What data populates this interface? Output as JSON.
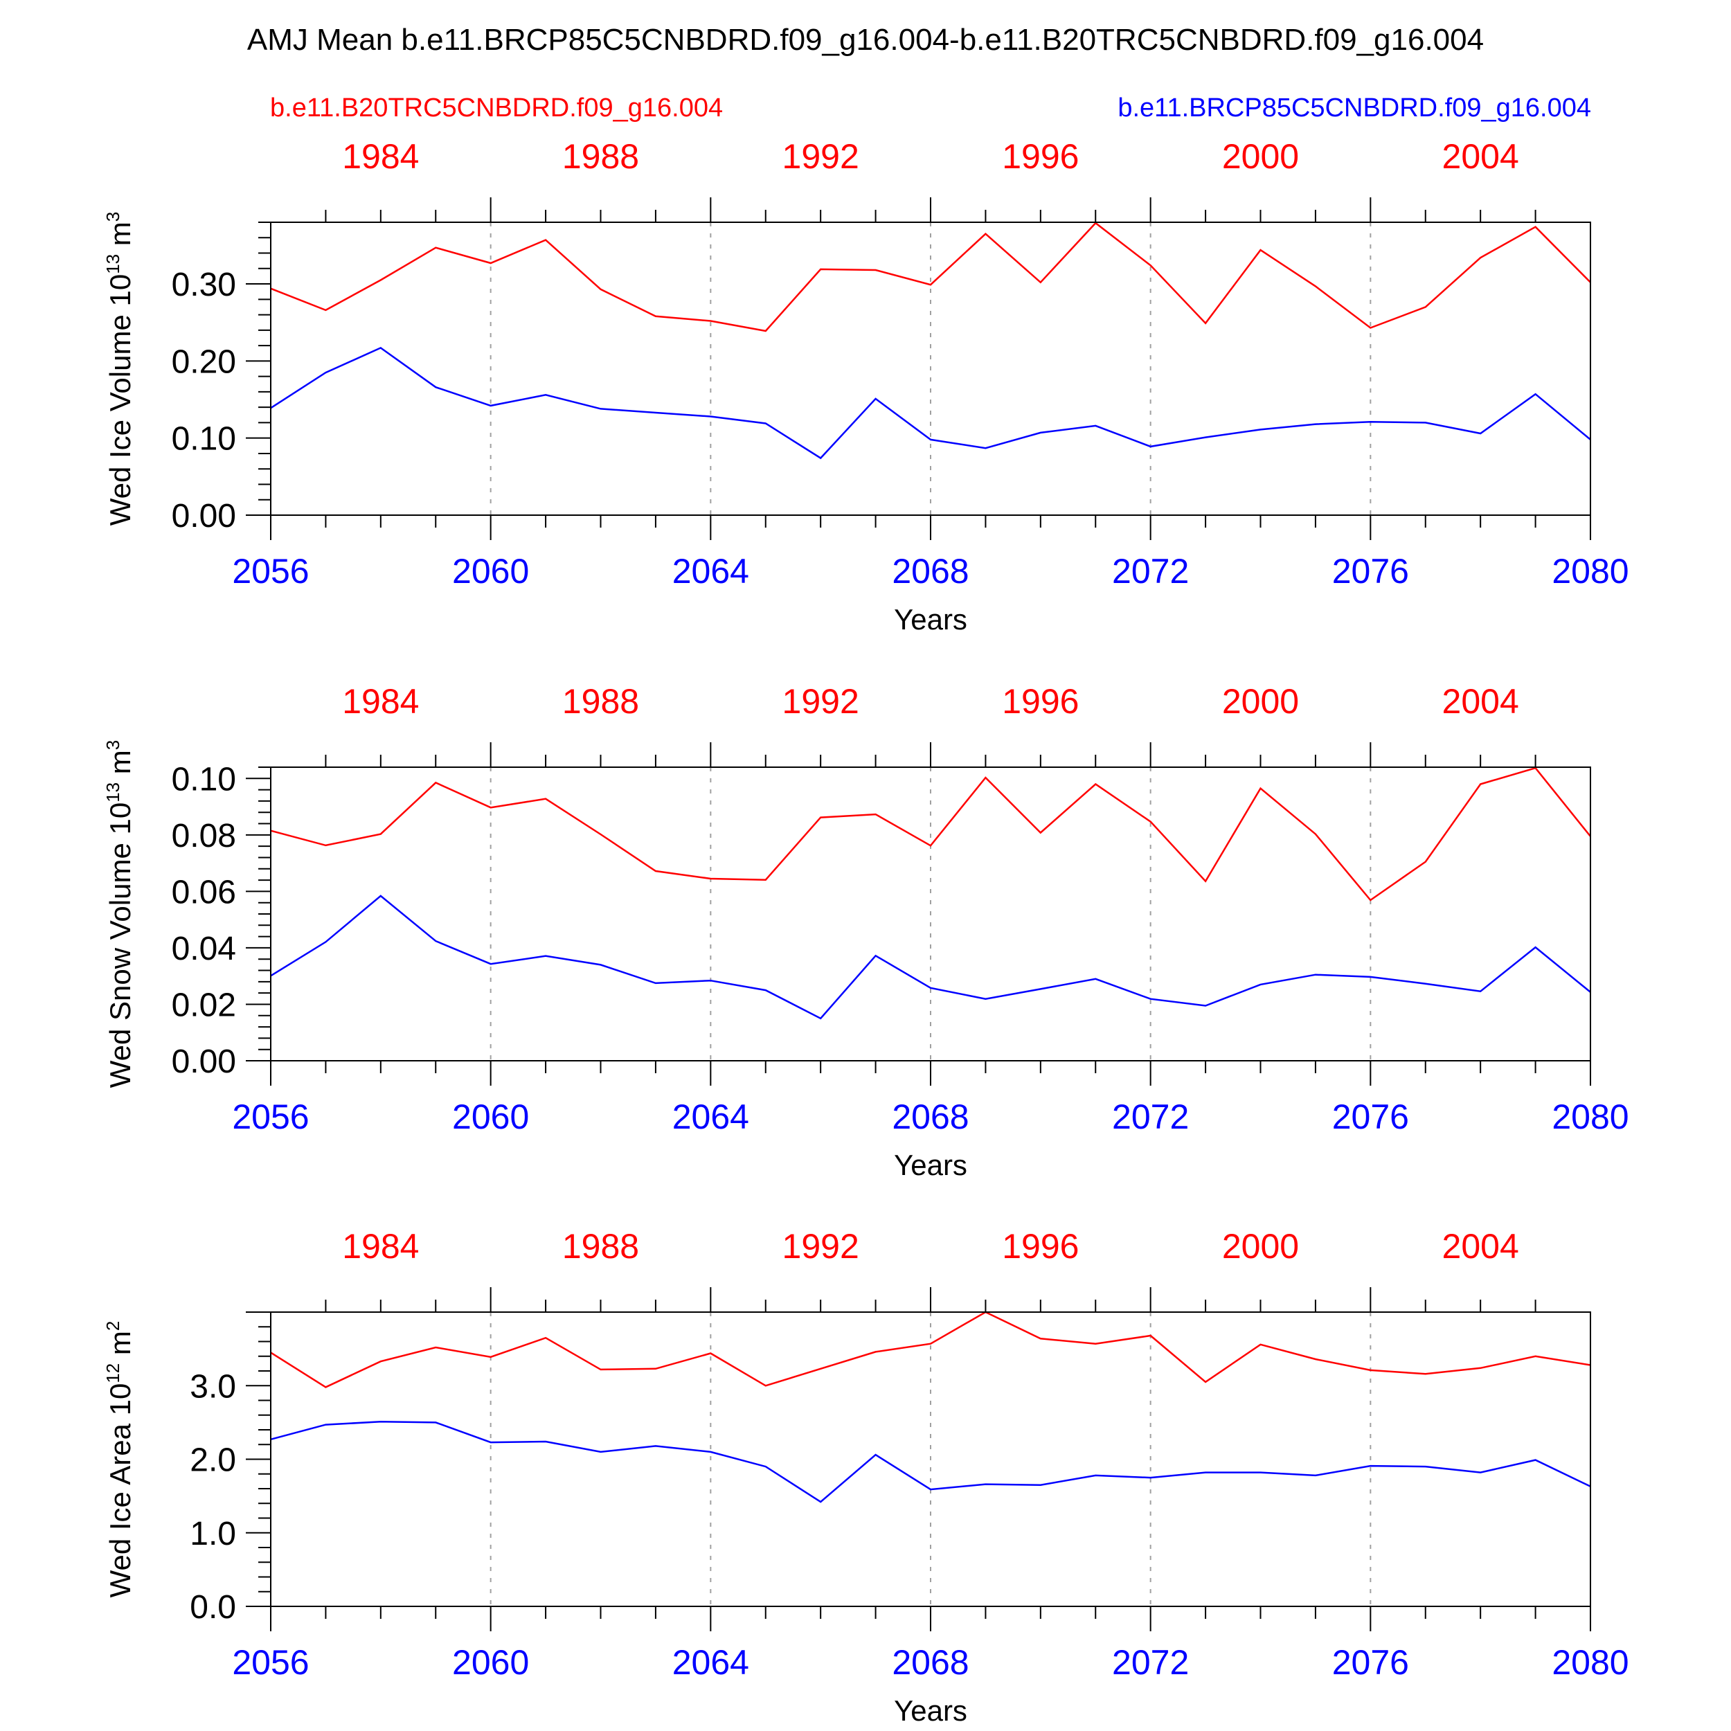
{
  "title": "AMJ Mean b.e11.BRCP85C5CNBDRD.f09_g16.004-b.e11.B20TRC5CNBDRD.f09_g16.004",
  "legend": {
    "left_label": "b.e11.B20TRC5CNBDRD.f09_g16.004",
    "right_label": "b.e11.BRCP85C5CNBDRD.f09_g16.004"
  },
  "colors": {
    "red": "#ff0000",
    "blue": "#0000ff",
    "axis": "#000000",
    "grid": "#a0a0a0"
  },
  "chart_data": [
    {
      "type": "line",
      "ylabel": {
        "text": "Wed Ice Volume 10",
        "exponent": "13",
        "unit": " m",
        "unit_exp": "3"
      },
      "xlabel": "Years",
      "xlim": [
        2056,
        2080
      ],
      "ylim": [
        0,
        0.38
      ],
      "yticks": [
        0,
        0.1,
        0.2,
        0.3
      ],
      "ytick_labels": [
        "0.00",
        "0.10",
        "0.20",
        "0.30"
      ],
      "bottom_ticks": [
        "2056",
        "2060",
        "2064",
        "2068",
        "2072",
        "2076",
        "2080"
      ],
      "top_ticks": [
        "1984",
        "1988",
        "1992",
        "1996",
        "2000",
        "2004"
      ],
      "grid_x": [
        2060,
        2064,
        2068,
        2072,
        2076
      ],
      "x": [
        2056,
        2057,
        2058,
        2059,
        2060,
        2061,
        2062,
        2063,
        2064,
        2065,
        2066,
        2067,
        2068,
        2069,
        2070,
        2071,
        2072,
        2073,
        2074,
        2075,
        2076,
        2077,
        2078,
        2079,
        2080
      ],
      "series": [
        {
          "color": "red",
          "values": [
            0.294,
            0.266,
            0.305,
            0.347,
            0.327,
            0.357,
            0.293,
            0.258,
            0.252,
            0.239,
            0.319,
            0.318,
            0.299,
            0.365,
            0.302,
            0.379,
            0.324,
            0.249,
            0.344,
            0.297,
            0.243,
            0.27,
            0.334,
            0.374,
            0.302
          ]
        },
        {
          "color": "blue",
          "values": [
            0.139,
            0.185,
            0.217,
            0.166,
            0.142,
            0.156,
            0.138,
            0.133,
            0.128,
            0.119,
            0.074,
            0.151,
            0.098,
            0.087,
            0.107,
            0.116,
            0.089,
            0.101,
            0.111,
            0.118,
            0.121,
            0.12,
            0.106,
            0.157,
            0.098
          ]
        }
      ]
    },
    {
      "type": "line",
      "ylabel": {
        "text": "Wed Snow Volume 10",
        "exponent": "13",
        "unit": " m",
        "unit_exp": "3"
      },
      "xlabel": "Years",
      "xlim": [
        2056,
        2080
      ],
      "ylim": [
        0,
        0.104
      ],
      "yticks": [
        0,
        0.02,
        0.04,
        0.06,
        0.08,
        0.1
      ],
      "ytick_labels": [
        "0.00",
        "0.02",
        "0.04",
        "0.06",
        "0.08",
        "0.10"
      ],
      "bottom_ticks": [
        "2056",
        "2060",
        "2064",
        "2068",
        "2072",
        "2076",
        "2080"
      ],
      "top_ticks": [
        "1984",
        "1988",
        "1992",
        "1996",
        "2000",
        "2004"
      ],
      "grid_x": [
        2060,
        2064,
        2068,
        2072,
        2076
      ],
      "x": [
        2056,
        2057,
        2058,
        2059,
        2060,
        2061,
        2062,
        2063,
        2064,
        2065,
        2066,
        2067,
        2068,
        2069,
        2070,
        2071,
        2072,
        2073,
        2074,
        2075,
        2076,
        2077,
        2078,
        2079,
        2080
      ],
      "series": [
        {
          "color": "red",
          "values": [
            0.0815,
            0.0763,
            0.0803,
            0.0985,
            0.0897,
            0.0928,
            0.0802,
            0.0672,
            0.0645,
            0.0641,
            0.0862,
            0.0873,
            0.0762,
            0.1003,
            0.0808,
            0.098,
            0.0847,
            0.0636,
            0.0965,
            0.0803,
            0.0569,
            0.0705,
            0.098,
            0.1037,
            0.0795
          ]
        },
        {
          "color": "blue",
          "values": [
            0.0301,
            0.0421,
            0.0584,
            0.0424,
            0.0343,
            0.0371,
            0.034,
            0.0275,
            0.0284,
            0.025,
            0.015,
            0.0372,
            0.0258,
            0.0219,
            0.0254,
            0.029,
            0.0219,
            0.0195,
            0.027,
            0.0305,
            0.0297,
            0.0273,
            0.0246,
            0.0402,
            0.0243
          ]
        }
      ]
    },
    {
      "type": "line",
      "ylabel": {
        "text": "Wed Ice Area 10",
        "exponent": "12",
        "unit": " m",
        "unit_exp": "2"
      },
      "xlabel": "Years",
      "xlim": [
        2056,
        2080
      ],
      "ylim": [
        0,
        4.0
      ],
      "yticks": [
        0,
        1,
        2,
        3
      ],
      "ytick_labels": [
        "0.0",
        "1.0",
        "2.0",
        "3.0"
      ],
      "bottom_ticks": [
        "2056",
        "2060",
        "2064",
        "2068",
        "2072",
        "2076",
        "2080"
      ],
      "top_ticks": [
        "1984",
        "1988",
        "1992",
        "1996",
        "2000",
        "2004"
      ],
      "grid_x": [
        2060,
        2064,
        2068,
        2072,
        2076
      ],
      "x": [
        2056,
        2057,
        2058,
        2059,
        2060,
        2061,
        2062,
        2063,
        2064,
        2065,
        2066,
        2067,
        2068,
        2069,
        2070,
        2071,
        2072,
        2073,
        2074,
        2075,
        2076,
        2077,
        2078,
        2079,
        2080
      ],
      "series": [
        {
          "color": "red",
          "values": [
            3.45,
            2.98,
            3.33,
            3.52,
            3.39,
            3.65,
            3.22,
            3.23,
            3.44,
            3.0,
            3.23,
            3.46,
            3.57,
            4.0,
            3.64,
            3.57,
            3.68,
            3.05,
            3.56,
            3.36,
            3.21,
            3.16,
            3.24,
            3.4,
            3.28
          ]
        },
        {
          "color": "blue",
          "values": [
            2.27,
            2.47,
            2.51,
            2.5,
            2.23,
            2.24,
            2.1,
            2.18,
            2.1,
            1.9,
            1.42,
            2.06,
            1.59,
            1.66,
            1.65,
            1.78,
            1.75,
            1.82,
            1.82,
            1.78,
            1.91,
            1.9,
            1.82,
            1.99,
            1.63
          ]
        }
      ]
    }
  ]
}
